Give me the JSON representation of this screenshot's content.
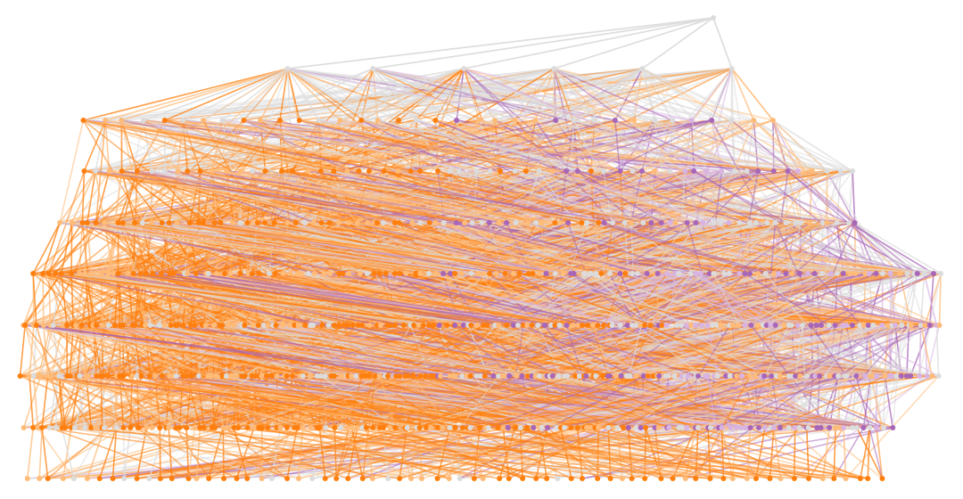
{
  "diagram": {
    "type": "layered-network",
    "levels": 10,
    "palette": {
      "orange": "#ff7f0e",
      "light_orange": "#ffbb78",
      "purple": "#a866b8",
      "light_purple": "#d9b4e2",
      "grey": "#dcdcdc"
    }
  }
}
